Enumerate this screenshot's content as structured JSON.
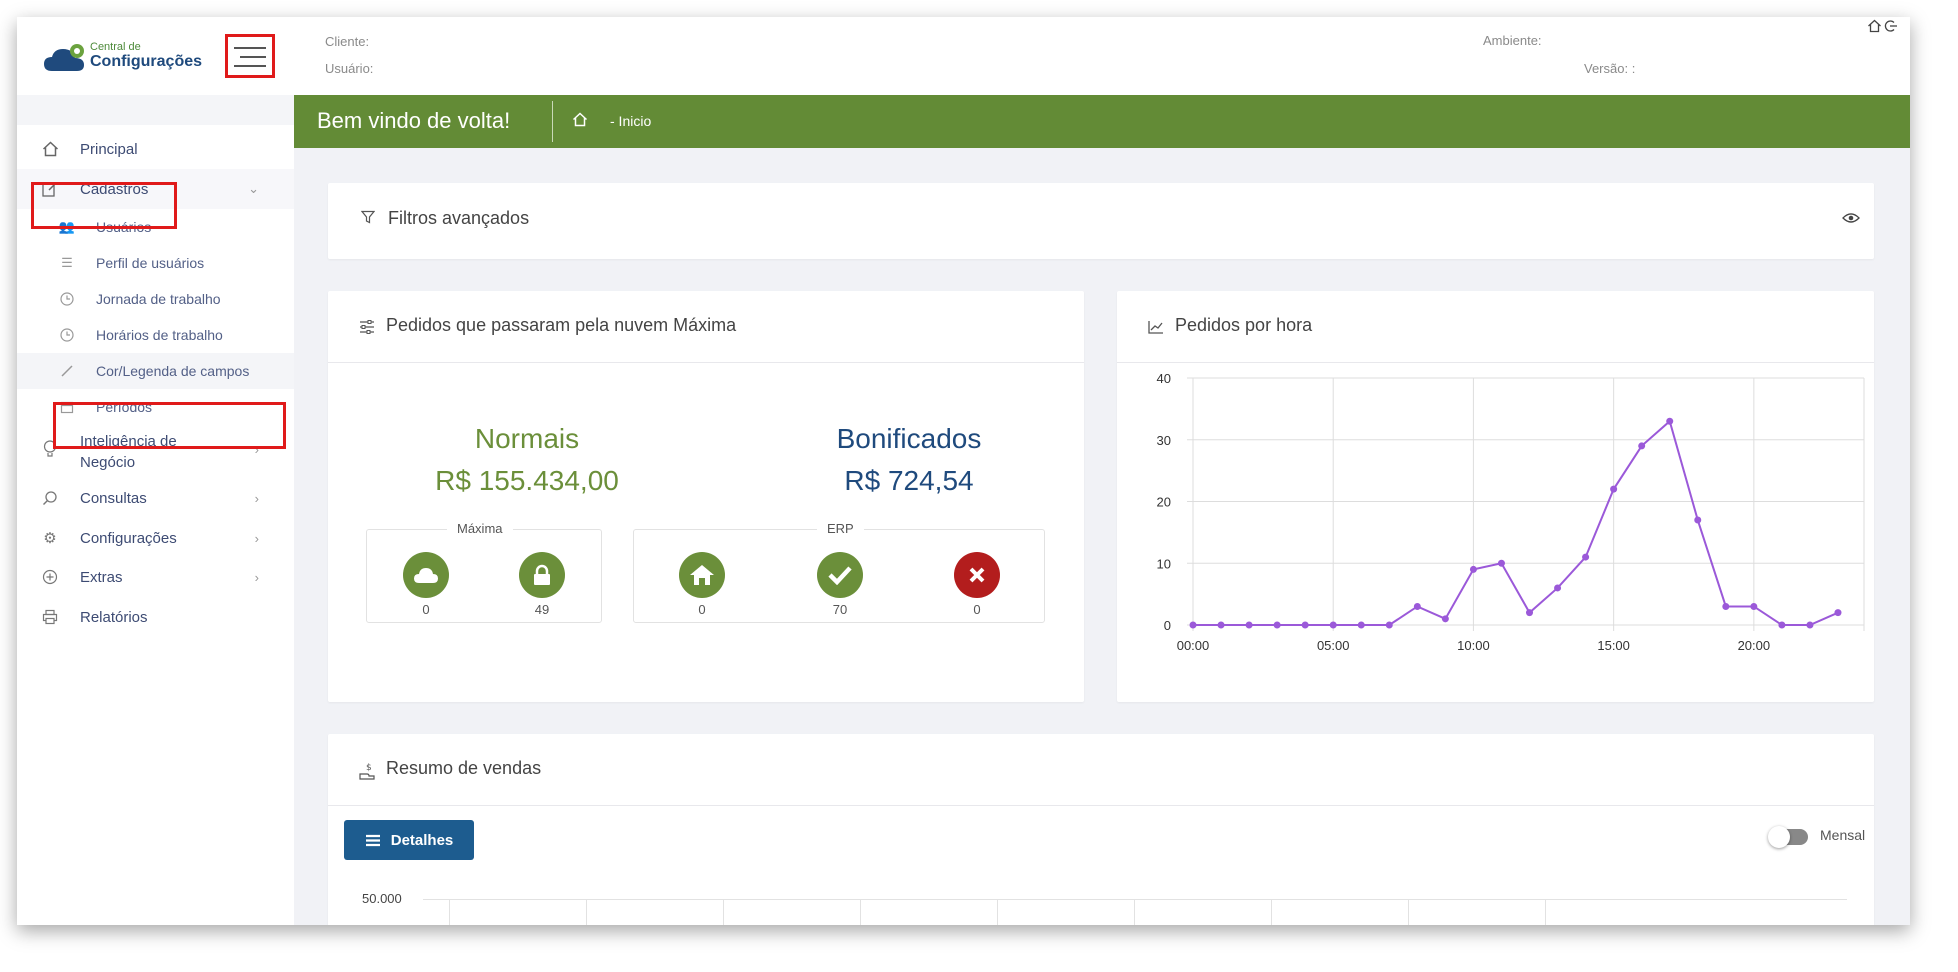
{
  "logo": {
    "small": "Central de",
    "big": "Configurações"
  },
  "header": {
    "client_label": "Cliente:",
    "user_label": "Usuário:",
    "env_label": "Ambiente:",
    "version_label": "Versão: :"
  },
  "banner": {
    "title": "Bem vindo de volta!",
    "crumb": "- Inicio"
  },
  "sidebar": {
    "items": [
      {
        "label": "Principal",
        "icon": "home-icon"
      },
      {
        "label": "Cadastros",
        "icon": "edit-icon"
      },
      {
        "label": "Inteligência de Negócio",
        "icon": "lightbulb-icon"
      },
      {
        "label": "Consultas",
        "icon": "search-icon"
      },
      {
        "label": "Configurações",
        "icon": "gear-icon"
      },
      {
        "label": "Extras",
        "icon": "plus-circle-icon"
      },
      {
        "label": "Relatórios",
        "icon": "printer-icon"
      }
    ],
    "intel_line1": "Inteligência de",
    "intel_line2": "Negócio",
    "subitems": [
      {
        "label": "Usuários",
        "icon": "users-icon"
      },
      {
        "label": "Perfil de usuários",
        "icon": "list-check-icon"
      },
      {
        "label": "Jornada de trabalho",
        "icon": "clock-icon"
      },
      {
        "label": "Horários de trabalho",
        "icon": "clock-icon"
      },
      {
        "label": "Cor/Legenda de campos",
        "icon": "pencil-icon"
      },
      {
        "label": "Períodos",
        "icon": "calendar-icon"
      }
    ]
  },
  "filters": {
    "title": "Filtros avançados"
  },
  "orders_card": {
    "title": "Pedidos que passaram pela nuvem Máxima",
    "normais_label": "Normais",
    "normais_value": "R$ 155.434,00",
    "bonificados_label": "Bonificados",
    "bonificados_value": "R$ 724,54",
    "maxima_group": "Máxima",
    "erp_group": "ERP",
    "counts": {
      "cloud": "0",
      "lock": "49",
      "home": "0",
      "check": "70",
      "cross": "0"
    },
    "colors": {
      "green": "#6b8f3a",
      "red": "#b31d1d",
      "blue": "#1f4a7d"
    }
  },
  "chart_card": {
    "title": "Pedidos por hora"
  },
  "chart_data": {
    "type": "line",
    "title": "Pedidos por hora",
    "x": [
      0,
      1,
      2,
      3,
      4,
      5,
      6,
      7,
      8,
      9,
      10,
      11,
      12,
      13,
      14,
      15,
      16,
      17,
      18,
      19,
      20,
      21,
      22,
      23
    ],
    "series": [
      {
        "values": [
          0,
          0,
          0,
          0,
          0,
          0,
          0,
          0,
          3,
          1,
          9,
          10,
          2,
          6,
          11,
          22,
          29,
          33,
          17,
          3,
          3,
          0,
          0,
          2
        ],
        "color": "#9b59d9"
      }
    ],
    "xticks": [
      "00:00",
      "05:00",
      "10:00",
      "15:00",
      "20:00"
    ],
    "yticks": [
      "0",
      "10",
      "20",
      "30",
      "40"
    ],
    "ylim": [
      0,
      40
    ],
    "grid": true
  },
  "sales_card": {
    "title": "Resumo de vendas",
    "details_button": "Detalhes",
    "toggle_label": "Mensal",
    "y_top": "50.000"
  }
}
